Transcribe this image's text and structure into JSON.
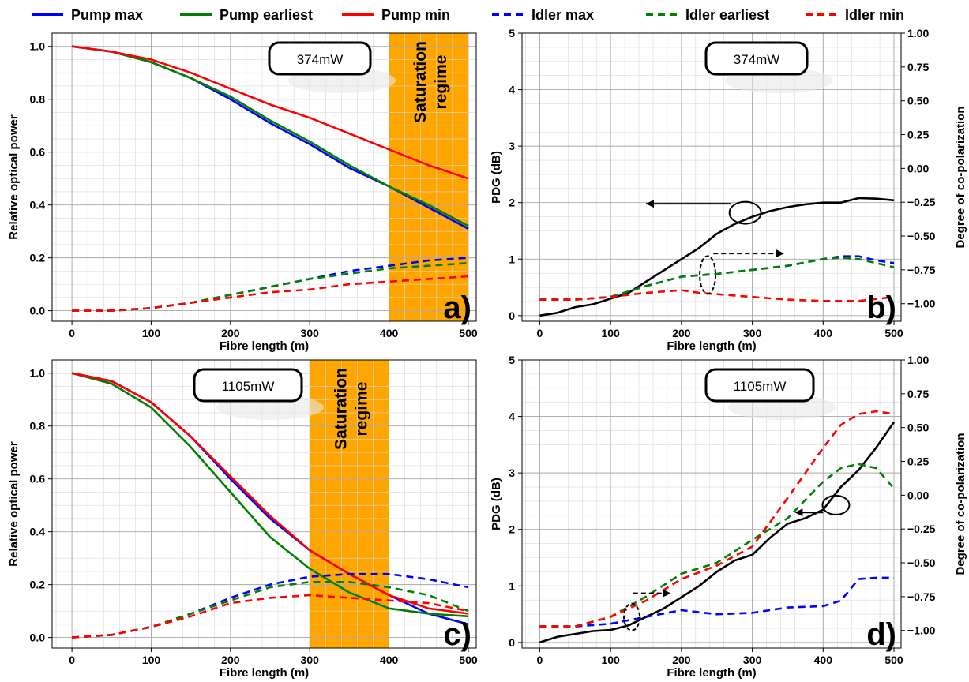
{
  "legend": [
    {
      "label": "Pump max",
      "color": "#0000ff",
      "dash": false
    },
    {
      "label": "Pump earliest",
      "color": "#008000",
      "dash": false
    },
    {
      "label": "Pump min",
      "color": "#ff0000",
      "dash": false
    },
    {
      "label": "Idler max",
      "color": "#0000ff",
      "dash": true
    },
    {
      "label": "Idler earliest",
      "color": "#008000",
      "dash": true
    },
    {
      "label": "Idler min",
      "color": "#ff0000",
      "dash": true
    }
  ],
  "chart_data": [
    {
      "id": "a",
      "type": "line",
      "panel_label": "a)",
      "power_label": "374mW",
      "saturation": {
        "label_line1": "Saturation",
        "label_line2": "regime",
        "x_range": [
          400,
          500
        ],
        "color": "#ffa500"
      },
      "xlabel": "Fibre length (m)",
      "ylabel": "Relative optical power",
      "xlim": [
        -25,
        510
      ],
      "ylim": [
        -0.04,
        1.05
      ],
      "xticks": [
        0,
        100,
        200,
        300,
        400,
        500
      ],
      "yticks": [
        0.0,
        0.2,
        0.4,
        0.6,
        0.8,
        1.0
      ],
      "ytick_labels": [
        "0.0",
        "0.2",
        "0.4",
        "0.6",
        "0.8",
        "1.0"
      ],
      "grid": true,
      "series": [
        {
          "name": "Pump max",
          "color": "#0000ff",
          "dash": false,
          "x": [
            0,
            50,
            100,
            150,
            200,
            250,
            300,
            350,
            400,
            450,
            500
          ],
          "y": [
            1.0,
            0.98,
            0.94,
            0.88,
            0.8,
            0.71,
            0.63,
            0.54,
            0.47,
            0.39,
            0.31
          ]
        },
        {
          "name": "Pump earliest",
          "color": "#008000",
          "dash": false,
          "x": [
            0,
            50,
            100,
            150,
            200,
            250,
            300,
            350,
            400,
            450,
            500
          ],
          "y": [
            1.0,
            0.98,
            0.94,
            0.88,
            0.81,
            0.72,
            0.64,
            0.55,
            0.47,
            0.4,
            0.32
          ]
        },
        {
          "name": "Pump min",
          "color": "#ff0000",
          "dash": false,
          "x": [
            0,
            50,
            100,
            150,
            200,
            250,
            300,
            350,
            400,
            450,
            500
          ],
          "y": [
            1.0,
            0.98,
            0.95,
            0.9,
            0.84,
            0.78,
            0.73,
            0.67,
            0.61,
            0.55,
            0.5
          ]
        },
        {
          "name": "Idler max",
          "color": "#0000ff",
          "dash": true,
          "x": [
            0,
            50,
            100,
            150,
            200,
            250,
            300,
            350,
            400,
            450,
            500
          ],
          "y": [
            0.0,
            0.0,
            0.01,
            0.03,
            0.06,
            0.09,
            0.12,
            0.15,
            0.17,
            0.19,
            0.2
          ]
        },
        {
          "name": "Idler earliest",
          "color": "#008000",
          "dash": true,
          "x": [
            0,
            50,
            100,
            150,
            200,
            250,
            300,
            350,
            400,
            450,
            500
          ],
          "y": [
            0.0,
            0.0,
            0.01,
            0.03,
            0.06,
            0.09,
            0.12,
            0.14,
            0.16,
            0.17,
            0.18
          ]
        },
        {
          "name": "Idler min",
          "color": "#ff0000",
          "dash": true,
          "x": [
            0,
            50,
            100,
            150,
            200,
            250,
            300,
            350,
            400,
            450,
            500
          ],
          "y": [
            0.0,
            0.0,
            0.01,
            0.03,
            0.05,
            0.07,
            0.08,
            0.1,
            0.11,
            0.12,
            0.13
          ]
        }
      ]
    },
    {
      "id": "b",
      "type": "line",
      "panel_label": "b)",
      "power_label": "374mW",
      "xlabel": "Fibre length (m)",
      "ylabel": "PDG (dB)",
      "ylabel_right": "Degree of co-polarization",
      "xlim": [
        -25,
        510
      ],
      "ylim": [
        -0.1,
        5
      ],
      "y2lim": [
        -1.13,
        1.0
      ],
      "xticks": [
        0,
        100,
        200,
        300,
        400,
        500
      ],
      "yticks": [
        0,
        1,
        2,
        3,
        4,
        5
      ],
      "ytick_labels": [
        "0",
        "1",
        "2",
        "3",
        "4",
        "5"
      ],
      "y2ticks": [
        -1.0,
        -0.75,
        -0.5,
        -0.25,
        0.0,
        0.25,
        0.5,
        0.75,
        1.0
      ],
      "y2tick_labels": [
        "−1.00",
        "−0.75",
        "−0.50",
        "−0.25",
        "0.00",
        "0.25",
        "0.50",
        "0.75",
        "1.00"
      ],
      "grid": true,
      "series": [
        {
          "name": "PDG",
          "axis": "left",
          "color": "#000000",
          "dash": false,
          "x": [
            0,
            25,
            50,
            75,
            100,
            125,
            150,
            175,
            200,
            225,
            250,
            275,
            300,
            325,
            350,
            375,
            400,
            425,
            450,
            475,
            500
          ],
          "y": [
            0.0,
            0.05,
            0.15,
            0.2,
            0.3,
            0.4,
            0.6,
            0.8,
            1.0,
            1.2,
            1.45,
            1.62,
            1.75,
            1.85,
            1.92,
            1.97,
            2.0,
            2.0,
            2.08,
            2.07,
            2.04
          ]
        },
        {
          "name": "Idler max",
          "axis": "right",
          "color": "#0000ff",
          "dash": true,
          "x": [
            0,
            50,
            100,
            150,
            200,
            250,
            300,
            350,
            400,
            425,
            450,
            475,
            500
          ],
          "y": [
            -0.97,
            -0.97,
            -0.95,
            -0.87,
            -0.8,
            -0.78,
            -0.75,
            -0.72,
            -0.67,
            -0.65,
            -0.65,
            -0.68,
            -0.7
          ]
        },
        {
          "name": "Idler earliest",
          "axis": "right",
          "color": "#008000",
          "dash": true,
          "x": [
            0,
            50,
            100,
            150,
            200,
            250,
            300,
            350,
            400,
            425,
            450,
            475,
            500
          ],
          "y": [
            -0.97,
            -0.97,
            -0.95,
            -0.87,
            -0.8,
            -0.78,
            -0.75,
            -0.72,
            -0.67,
            -0.66,
            -0.67,
            -0.7,
            -0.73
          ]
        },
        {
          "name": "Idler min",
          "axis": "right",
          "color": "#ff0000",
          "dash": true,
          "x": [
            0,
            50,
            100,
            150,
            200,
            225,
            250,
            300,
            350,
            400,
            450,
            500
          ],
          "y": [
            -0.97,
            -0.97,
            -0.95,
            -0.92,
            -0.9,
            -0.92,
            -0.93,
            -0.95,
            -0.97,
            -0.98,
            -0.98,
            -0.95
          ]
        }
      ]
    },
    {
      "id": "c",
      "type": "line",
      "panel_label": "c)",
      "power_label": "1105mW",
      "saturation": {
        "label_line1": "Saturation",
        "label_line2": "regime",
        "x_range": [
          300,
          400
        ],
        "color": "#ffa500"
      },
      "xlabel": "Fibre length (m)",
      "ylabel": "Relative optical power",
      "xlim": [
        -25,
        510
      ],
      "ylim": [
        -0.04,
        1.05
      ],
      "xticks": [
        0,
        100,
        200,
        300,
        400,
        500
      ],
      "yticks": [
        0.0,
        0.2,
        0.4,
        0.6,
        0.8,
        1.0
      ],
      "ytick_labels": [
        "0.0",
        "0.2",
        "0.4",
        "0.6",
        "0.8",
        "1.0"
      ],
      "grid": true,
      "series": [
        {
          "name": "Pump max",
          "color": "#0000ff",
          "dash": false,
          "x": [
            0,
            50,
            100,
            150,
            200,
            250,
            300,
            350,
            400,
            450,
            500
          ],
          "y": [
            1.0,
            0.97,
            0.89,
            0.76,
            0.6,
            0.45,
            0.33,
            0.24,
            0.16,
            0.09,
            0.05
          ]
        },
        {
          "name": "Pump earliest",
          "color": "#008000",
          "dash": false,
          "x": [
            0,
            50,
            100,
            150,
            200,
            250,
            300,
            350,
            400,
            450,
            500
          ],
          "y": [
            1.0,
            0.96,
            0.87,
            0.72,
            0.55,
            0.38,
            0.26,
            0.17,
            0.11,
            0.09,
            0.08
          ]
        },
        {
          "name": "Pump min",
          "color": "#ff0000",
          "dash": false,
          "x": [
            0,
            50,
            100,
            150,
            200,
            250,
            300,
            350,
            400,
            450,
            500
          ],
          "y": [
            1.0,
            0.97,
            0.89,
            0.76,
            0.61,
            0.46,
            0.33,
            0.24,
            0.16,
            0.11,
            0.09
          ]
        },
        {
          "name": "Idler max",
          "color": "#0000ff",
          "dash": true,
          "x": [
            0,
            50,
            100,
            150,
            200,
            250,
            300,
            350,
            400,
            450,
            500
          ],
          "y": [
            0.0,
            0.01,
            0.04,
            0.09,
            0.15,
            0.2,
            0.23,
            0.24,
            0.24,
            0.22,
            0.19
          ]
        },
        {
          "name": "Idler earliest",
          "color": "#008000",
          "dash": true,
          "x": [
            0,
            50,
            100,
            150,
            200,
            250,
            300,
            350,
            400,
            450,
            500
          ],
          "y": [
            0.0,
            0.01,
            0.04,
            0.09,
            0.14,
            0.19,
            0.21,
            0.21,
            0.19,
            0.16,
            0.1
          ]
        },
        {
          "name": "Idler min",
          "color": "#ff0000",
          "dash": true,
          "x": [
            0,
            50,
            100,
            150,
            200,
            250,
            300,
            350,
            400,
            450,
            500
          ],
          "y": [
            0.0,
            0.01,
            0.04,
            0.08,
            0.13,
            0.15,
            0.16,
            0.15,
            0.14,
            0.13,
            0.1
          ]
        }
      ]
    },
    {
      "id": "d",
      "type": "line",
      "panel_label": "d)",
      "power_label": "1105mW",
      "xlabel": "Fibre length (m)",
      "ylabel": "PDG (dB)",
      "ylabel_right": "Degree of co-polarization",
      "xlim": [
        -25,
        510
      ],
      "ylim": [
        -0.1,
        5
      ],
      "y2lim": [
        -1.13,
        1.0
      ],
      "xticks": [
        0,
        100,
        200,
        300,
        400,
        500
      ],
      "yticks": [
        0,
        1,
        2,
        3,
        4,
        5
      ],
      "ytick_labels": [
        "0",
        "1",
        "2",
        "3",
        "4",
        "5"
      ],
      "y2ticks": [
        -1.0,
        -0.75,
        -0.5,
        -0.25,
        0.0,
        0.25,
        0.5,
        0.75,
        1.0
      ],
      "y2tick_labels": [
        "−1.00",
        "−0.75",
        "−0.50",
        "−0.25",
        "0.00",
        "0.25",
        "0.50",
        "0.75",
        "1.00"
      ],
      "grid": true,
      "series": [
        {
          "name": "PDG",
          "axis": "left",
          "color": "#000000",
          "dash": false,
          "x": [
            0,
            25,
            50,
            75,
            100,
            125,
            150,
            175,
            200,
            225,
            250,
            275,
            300,
            325,
            350,
            375,
            400,
            425,
            450,
            475,
            500
          ],
          "y": [
            0.0,
            0.1,
            0.15,
            0.2,
            0.22,
            0.3,
            0.45,
            0.6,
            0.8,
            1.0,
            1.25,
            1.45,
            1.55,
            1.85,
            2.1,
            2.2,
            2.35,
            2.75,
            3.05,
            3.45,
            3.9
          ]
        },
        {
          "name": "Idler max",
          "axis": "right",
          "color": "#0000ff",
          "dash": true,
          "x": [
            0,
            50,
            100,
            150,
            200,
            250,
            300,
            350,
            400,
            425,
            450,
            475,
            500
          ],
          "y": [
            -0.97,
            -0.97,
            -0.95,
            -0.9,
            -0.85,
            -0.88,
            -0.87,
            -0.83,
            -0.82,
            -0.78,
            -0.62,
            -0.61,
            -0.61
          ]
        },
        {
          "name": "Idler earliest",
          "axis": "right",
          "color": "#008000",
          "dash": true,
          "x": [
            0,
            50,
            100,
            150,
            200,
            250,
            300,
            350,
            400,
            425,
            450,
            475,
            500
          ],
          "y": [
            -0.97,
            -0.97,
            -0.9,
            -0.75,
            -0.58,
            -0.5,
            -0.33,
            -0.17,
            0.1,
            0.2,
            0.23,
            0.2,
            0.05
          ]
        },
        {
          "name": "Idler min",
          "axis": "right",
          "color": "#ff0000",
          "dash": true,
          "x": [
            0,
            50,
            100,
            150,
            200,
            250,
            300,
            350,
            400,
            425,
            450,
            475,
            500
          ],
          "y": [
            -0.97,
            -0.97,
            -0.9,
            -0.78,
            -0.62,
            -0.52,
            -0.38,
            -0.02,
            0.35,
            0.52,
            0.6,
            0.62,
            0.6
          ]
        }
      ]
    }
  ]
}
